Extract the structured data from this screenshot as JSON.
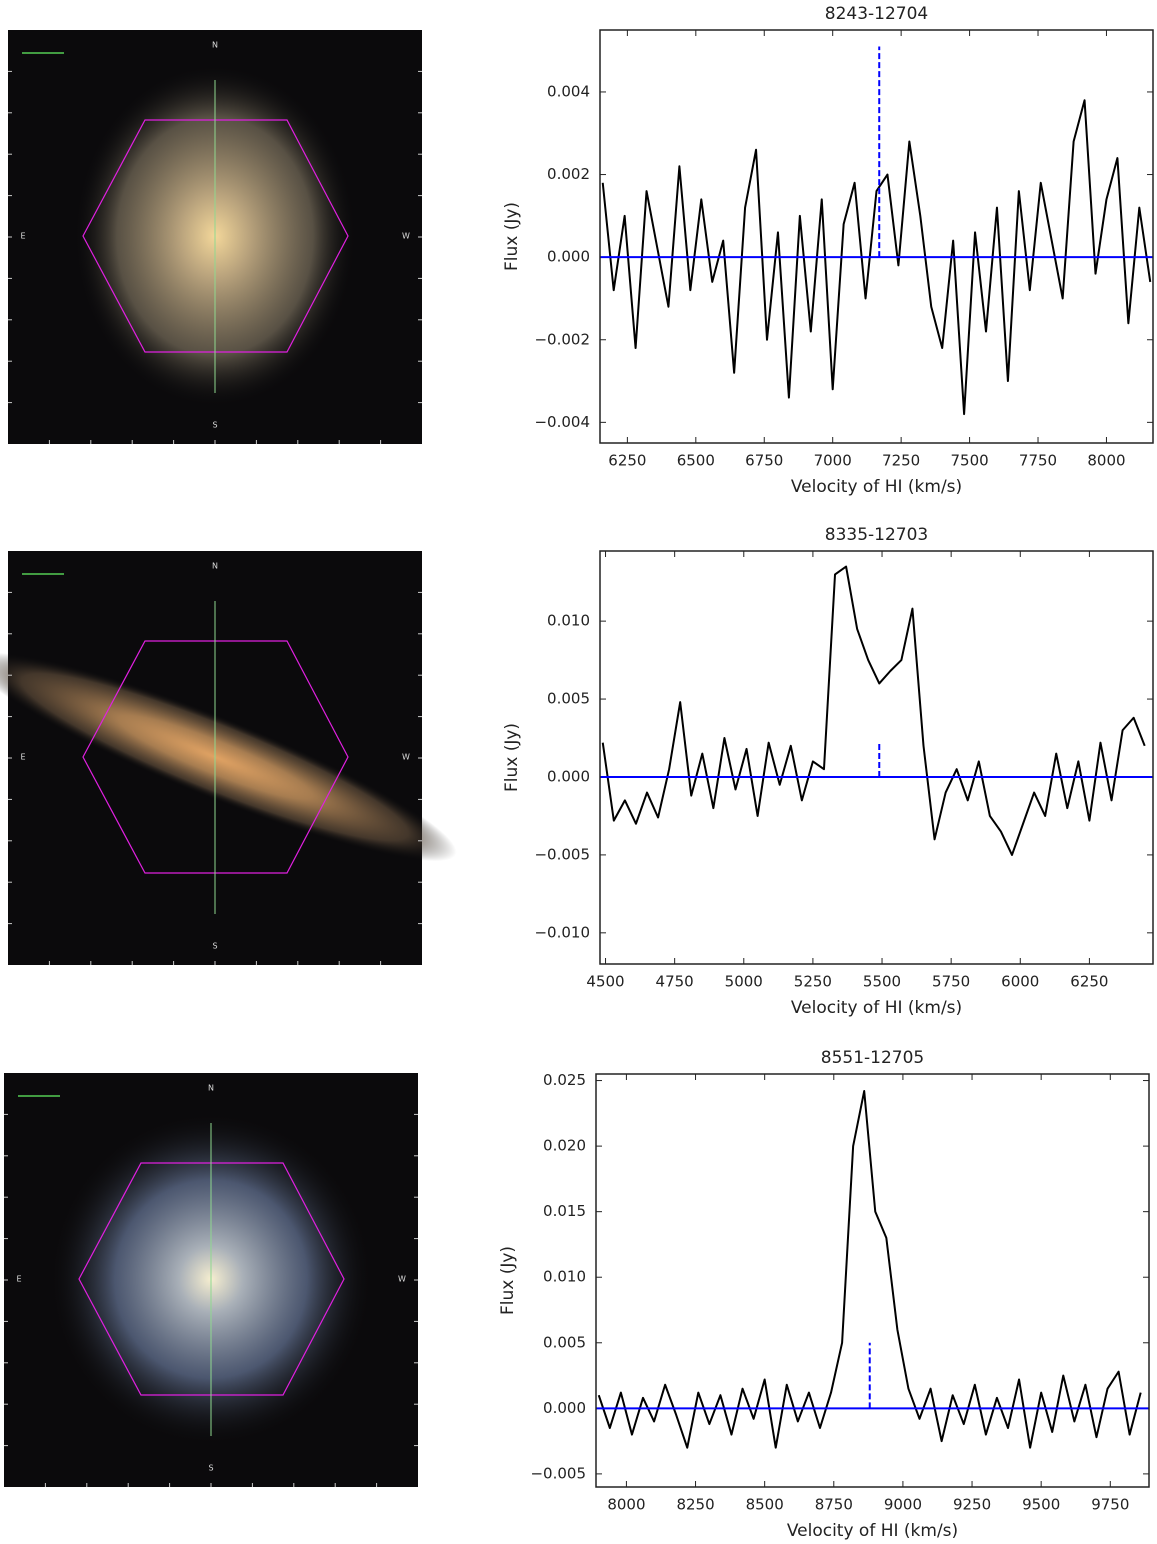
{
  "images": [
    {
      "labels": [
        "N",
        "E",
        "W",
        "S"
      ]
    },
    {
      "labels": [
        "N",
        "E",
        "W",
        "S"
      ]
    },
    {
      "labels": [
        "N",
        "E",
        "W",
        "S"
      ]
    }
  ],
  "chart_data": [
    {
      "type": "line",
      "title": "8243-12704",
      "x_label": "Velocity of HI (km/s)",
      "y_label": "Flux (Jy)",
      "x": [
        6160,
        6200,
        6240,
        6280,
        6320,
        6360,
        6400,
        6440,
        6480,
        6520,
        6560,
        6600,
        6640,
        6680,
        6720,
        6760,
        6800,
        6840,
        6880,
        6920,
        6960,
        7000,
        7040,
        7080,
        7120,
        7160,
        7200,
        7240,
        7280,
        7320,
        7360,
        7400,
        7440,
        7480,
        7520,
        7560,
        7600,
        7640,
        7680,
        7720,
        7760,
        7800,
        7840,
        7880,
        7920,
        7960,
        8000,
        8040,
        8080,
        8120,
        8160
      ],
      "series": [
        {
          "color": "#000000",
          "values": [
            0.0018,
            -0.0008,
            0.001,
            -0.0022,
            0.0016,
            0.0002,
            -0.0012,
            0.0022,
            -0.0008,
            0.0014,
            -0.0006,
            0.0004,
            -0.0028,
            0.0012,
            0.0026,
            -0.002,
            0.0006,
            -0.0034,
            0.001,
            -0.0018,
            0.0014,
            -0.0032,
            0.0008,
            0.0018,
            -0.001,
            0.0016,
            0.002,
            -0.0002,
            0.0028,
            0.001,
            -0.0012,
            -0.0022,
            0.0004,
            -0.0038,
            0.0006,
            -0.0018,
            0.0012,
            -0.003,
            0.0016,
            -0.0008,
            0.0018,
            0.0004,
            -0.001,
            0.0028,
            0.0038,
            -0.0004,
            0.0014,
            0.0024,
            -0.0016,
            0.0012,
            -0.0006
          ]
        }
      ],
      "hline": {
        "y": 0,
        "color": "#0000ff"
      },
      "vline": {
        "x": 7170,
        "y": [
          0,
          0.0051
        ],
        "color": "#0000ff",
        "dashed": true
      },
      "xlim": [
        6150,
        8170
      ],
      "ylim": [
        -0.0045,
        0.0055
      ],
      "xticks": [
        6250,
        6500,
        6750,
        7000,
        7250,
        7500,
        7750,
        8000
      ],
      "yticks": [
        {
          "value": -0.004,
          "label": "−0.004"
        },
        {
          "value": -0.002,
          "label": "−0.002"
        },
        {
          "value": 0,
          "label": "0.000"
        },
        0.002,
        0.004
      ]
    },
    {
      "type": "line",
      "title": "8335-12703",
      "x_label": "Velocity of HI (km/s)",
      "y_label": "Flux (Jy)",
      "x": [
        4490,
        4530,
        4570,
        4610,
        4650,
        4690,
        4730,
        4770,
        4810,
        4850,
        4890,
        4930,
        4970,
        5010,
        5050,
        5090,
        5130,
        5170,
        5210,
        5250,
        5290,
        5330,
        5370,
        5410,
        5450,
        5490,
        5530,
        5570,
        5610,
        5650,
        5690,
        5730,
        5770,
        5810,
        5850,
        5890,
        5930,
        5970,
        6010,
        6050,
        6090,
        6130,
        6170,
        6210,
        6250,
        6290,
        6330,
        6370,
        6410,
        6450
      ],
      "series": [
        {
          "color": "#000000",
          "values": [
            0.0022,
            -0.0028,
            -0.0015,
            -0.003,
            -0.001,
            -0.0026,
            0.0005,
            0.0048,
            -0.0012,
            0.0015,
            -0.002,
            0.0025,
            -0.0008,
            0.0018,
            -0.0025,
            0.0022,
            -0.0005,
            0.002,
            -0.0015,
            0.001,
            0.0005,
            0.013,
            0.0135,
            0.0095,
            0.0075,
            0.006,
            0.0068,
            0.0075,
            0.0108,
            0.002,
            -0.004,
            -0.001,
            0.0005,
            -0.0015,
            0.001,
            -0.0025,
            -0.0035,
            -0.005,
            -0.003,
            -0.001,
            -0.0025,
            0.0015,
            -0.002,
            0.001,
            -0.0028,
            0.0022,
            -0.0015,
            0.003,
            0.0038,
            0.002
          ]
        }
      ],
      "hline": {
        "y": 0,
        "color": "#0000ff"
      },
      "vline": {
        "x": 5490,
        "y": [
          0,
          0.0023
        ],
        "color": "#0000ff",
        "dashed": true
      },
      "xlim": [
        4480,
        6480
      ],
      "ylim": [
        -0.012,
        0.0145
      ],
      "xticks": [
        4500,
        4750,
        5000,
        5250,
        5500,
        5750,
        6000,
        6250
      ],
      "yticks": [
        {
          "value": -0.01,
          "label": "−0.010"
        },
        {
          "value": -0.005,
          "label": "−0.005"
        },
        {
          "value": 0,
          "label": "0.000"
        },
        0.005,
        {
          "value": 0.01,
          "label": "0.010"
        }
      ]
    },
    {
      "type": "line",
      "title": "8551-12705",
      "x_label": "Velocity of HI (km/s)",
      "y_label": "Flux (Jy)",
      "x": [
        7900,
        7940,
        7980,
        8020,
        8060,
        8100,
        8140,
        8180,
        8220,
        8260,
        8300,
        8340,
        8380,
        8420,
        8460,
        8500,
        8540,
        8580,
        8620,
        8660,
        8700,
        8740,
        8780,
        8820,
        8860,
        8900,
        8940,
        8980,
        9020,
        9060,
        9100,
        9140,
        9180,
        9220,
        9260,
        9300,
        9340,
        9380,
        9420,
        9460,
        9500,
        9540,
        9580,
        9620,
        9660,
        9700,
        9740,
        9780,
        9820,
        9860
      ],
      "series": [
        {
          "color": "#000000",
          "values": [
            0.001,
            -0.0015,
            0.0012,
            -0.002,
            0.0008,
            -0.001,
            0.0018,
            -0.0005,
            -0.003,
            0.0012,
            -0.0012,
            0.001,
            -0.002,
            0.0015,
            -0.0008,
            0.0022,
            -0.003,
            0.0018,
            -0.001,
            0.0012,
            -0.0015,
            0.0012,
            0.005,
            0.02,
            0.0242,
            0.015,
            0.013,
            0.006,
            0.0015,
            -0.0008,
            0.0015,
            -0.0025,
            0.001,
            -0.0012,
            0.0018,
            -0.002,
            0.0008,
            -0.0015,
            0.0022,
            -0.003,
            0.0012,
            -0.0018,
            0.0025,
            -0.001,
            0.0018,
            -0.0022,
            0.0015,
            0.0028,
            -0.002,
            0.0012
          ]
        }
      ],
      "hline": {
        "y": 0,
        "color": "#0000ff"
      },
      "vline": {
        "x": 8880,
        "y": [
          0,
          0.005
        ],
        "color": "#0000ff",
        "dashed": true
      },
      "xlim": [
        7890,
        9890
      ],
      "ylim": [
        -0.006,
        0.0255
      ],
      "xticks": [
        8000,
        8250,
        8500,
        8750,
        9000,
        9250,
        9500,
        9750
      ],
      "yticks": [
        {
          "value": -0.005,
          "label": "−0.005"
        },
        {
          "value": 0,
          "label": "0.000"
        },
        0.005,
        {
          "value": 0.01,
          "label": "0.010"
        },
        0.015,
        {
          "value": 0.02,
          "label": "0.020"
        },
        0.025
      ]
    }
  ]
}
